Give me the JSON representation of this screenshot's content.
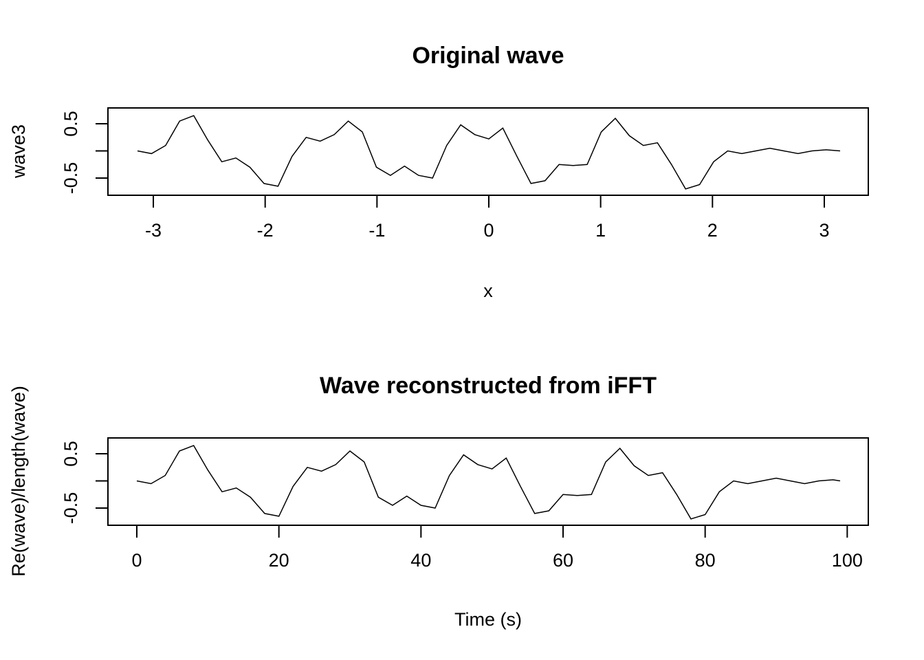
{
  "chart_data": [
    {
      "type": "line",
      "title": "Original wave",
      "xlabel": "x",
      "ylabel": "wave3",
      "xlim": [
        -3.14159,
        3.14159
      ],
      "ylim": [
        -0.8,
        0.8
      ],
      "x_ticks": [
        "-3",
        "-2",
        "-1",
        "0",
        "1",
        "2",
        "3"
      ],
      "y_ticks": [
        "-0.5",
        "0.5"
      ],
      "grid": false,
      "line_color": "#000000",
      "series": [
        {
          "x": [
            -3.14159,
            -3.01593,
            -2.89027,
            -2.7646,
            -2.63894,
            -2.51327,
            -2.38761,
            -2.26195,
            -2.13628,
            -2.01062,
            -1.88496,
            -1.75929,
            -1.63363,
            -1.50796,
            -1.3823,
            -1.25664,
            -1.13097,
            -1.00531,
            -0.87965,
            -0.75398,
            -0.62832,
            -0.50265,
            -0.37699,
            -0.25133,
            -0.12566,
            0.0,
            0.12566,
            0.25133,
            0.37699,
            0.50265,
            0.62832,
            0.75398,
            0.87965,
            1.00531,
            1.13097,
            1.25664,
            1.3823,
            1.50796,
            1.63363,
            1.75929,
            1.88496,
            2.01062,
            2.13628,
            2.26195,
            2.38761,
            2.51327,
            2.63894,
            2.7646,
            2.89027,
            3.01593,
            3.14159
          ],
          "y": [
            0.0,
            -0.05,
            0.1,
            0.55,
            0.65,
            0.2,
            -0.2,
            -0.13,
            -0.3,
            -0.6,
            -0.65,
            -0.1,
            0.25,
            0.18,
            0.3,
            0.55,
            0.35,
            -0.3,
            -0.45,
            -0.28,
            -0.45,
            -0.5,
            0.1,
            0.48,
            0.3,
            0.22,
            0.42,
            -0.1,
            -0.6,
            -0.55,
            -0.25,
            -0.27,
            -0.25,
            0.35,
            0.6,
            0.28,
            0.1,
            0.15,
            -0.25,
            -0.7,
            -0.62,
            -0.2,
            0.0,
            -0.05,
            0.0,
            0.05,
            0.0,
            -0.05,
            0.0,
            0.02,
            0.0
          ]
        }
      ]
    },
    {
      "type": "line",
      "title": "Wave reconstructed from iFFT",
      "xlabel": "Time (s)",
      "ylabel": "Re(wave)/length(wave)",
      "xlim": [
        0,
        99
      ],
      "ylim": [
        -0.8,
        0.8
      ],
      "x_ticks": [
        "0",
        "20",
        "40",
        "60",
        "80",
        "100"
      ],
      "y_ticks": [
        "-0.5",
        "0.5"
      ],
      "grid": false,
      "line_color": "#000000",
      "series": [
        {
          "x": [
            0,
            2,
            4,
            6,
            8,
            10,
            12,
            14,
            16,
            18,
            20,
            22,
            24,
            26,
            28,
            30,
            32,
            34,
            36,
            38,
            40,
            42,
            44,
            46,
            48,
            50,
            52,
            54,
            56,
            58,
            60,
            62,
            64,
            66,
            68,
            70,
            72,
            74,
            76,
            78,
            80,
            82,
            84,
            86,
            88,
            90,
            92,
            94,
            96,
            98,
            99
          ],
          "y": [
            0.0,
            -0.05,
            0.1,
            0.55,
            0.65,
            0.2,
            -0.2,
            -0.13,
            -0.3,
            -0.6,
            -0.65,
            -0.1,
            0.25,
            0.18,
            0.3,
            0.55,
            0.35,
            -0.3,
            -0.45,
            -0.28,
            -0.45,
            -0.5,
            0.1,
            0.48,
            0.3,
            0.22,
            0.42,
            -0.1,
            -0.6,
            -0.55,
            -0.25,
            -0.27,
            -0.25,
            0.35,
            0.6,
            0.28,
            0.1,
            0.15,
            -0.25,
            -0.7,
            -0.62,
            -0.2,
            0.0,
            -0.05,
            0.0,
            0.05,
            0.0,
            -0.05,
            0.0,
            0.02,
            0.0
          ]
        }
      ]
    }
  ]
}
